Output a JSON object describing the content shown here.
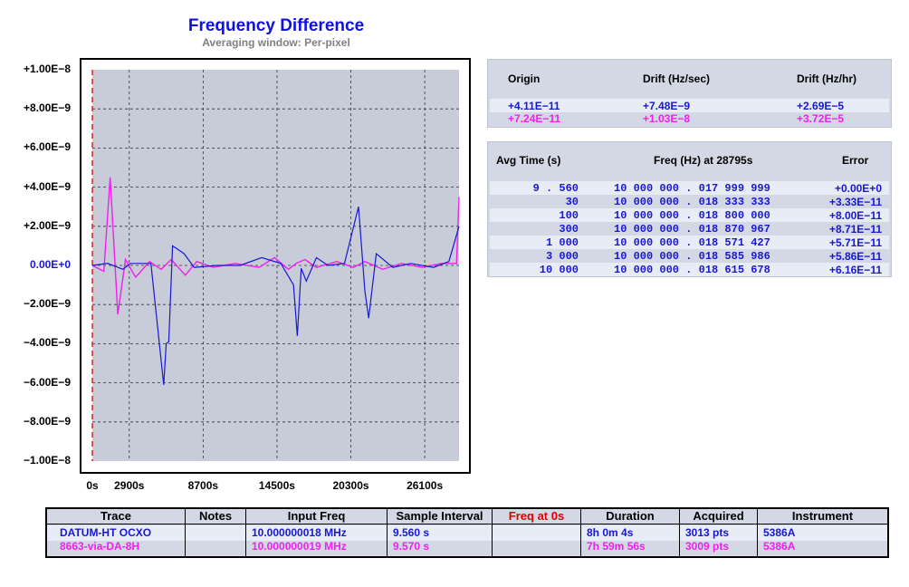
{
  "title": "Frequency Difference",
  "subtitle": "Averaging window: Per-pixel",
  "colors": {
    "trace1": "#1818d0",
    "trace2": "#f020f0",
    "freq_at_0s": "#e00000",
    "plot_bg": "#c8ccd8"
  },
  "chart_data": {
    "type": "line",
    "title": "Frequency Difference",
    "subtitle": "Averaging window: Per-pixel",
    "xlabel": "",
    "ylabel": "",
    "xlim": [
      0,
      28795
    ],
    "ylim": [
      -1e-08,
      1e-08
    ],
    "y_ticks": [
      "+1.00E−8",
      "+8.00E−9",
      "+6.00E−9",
      "+4.00E−9",
      "+2.00E−9",
      "0.00E+0",
      "−2.00E−9",
      "−4.00E−9",
      "−6.00E−9",
      "−8.00E−9",
      "−1.00E−8"
    ],
    "x_ticks": [
      "0s",
      "2900s",
      "8700s",
      "14500s",
      "20300s",
      "26100s"
    ],
    "x_tick_values": [
      0,
      2900,
      8700,
      14500,
      20300,
      26100
    ],
    "grid": true,
    "series": [
      {
        "name": "DATUM-HT OCXO",
        "color": "#1818d0",
        "x": [
          0,
          1200,
          2400,
          3000,
          4600,
          5600,
          5800,
          6000,
          6300,
          7200,
          8000,
          9800,
          11600,
          13300,
          14800,
          15800,
          16100,
          16400,
          16800,
          17600,
          18500,
          19800,
          20900,
          21400,
          21700,
          22300,
          23600,
          25000,
          26800,
          28000,
          28795
        ],
        "y": [
          0,
          1e-10,
          -2e-10,
          1e-10,
          1e-10,
          -6.1e-09,
          -4e-09,
          -3.9e-09,
          1e-09,
          6e-10,
          -1e-10,
          0,
          0,
          4e-10,
          1e-10,
          -1e-09,
          -3.6e-09,
          -1.5e-10,
          -8e-10,
          4e-10,
          0,
          1e-10,
          3e-09,
          -1.3e-09,
          -2.7e-09,
          6e-10,
          -1e-10,
          1e-10,
          -1e-10,
          2e-10,
          2e-09
        ]
      },
      {
        "name": "8663-via-DA-8H",
        "color": "#f020f0",
        "x": [
          0,
          900,
          1400,
          2000,
          2600,
          3400,
          4500,
          5400,
          6200,
          7300,
          8200,
          9500,
          11200,
          13100,
          14300,
          15400,
          16000,
          16700,
          17600,
          19200,
          20500,
          21400,
          22800,
          24300,
          25900,
          27400,
          28600,
          28795
        ],
        "y": [
          0,
          -3e-10,
          4.5e-09,
          -2.5e-09,
          3e-10,
          -6e-10,
          2e-10,
          -2e-10,
          3e-10,
          -5e-10,
          2e-10,
          -1e-10,
          1e-10,
          -1e-10,
          4e-10,
          -2e-10,
          1e-10,
          3e-10,
          -1e-10,
          2e-10,
          -1e-10,
          2e-10,
          -2e-10,
          1e-10,
          -1e-10,
          1e-10,
          1e-10,
          3.5e-09
        ]
      }
    ]
  },
  "drift_panel": {
    "headers": [
      "Origin",
      "Drift (Hz/sec)",
      "Drift (Hz/hr)"
    ],
    "rows": [
      {
        "origin": "+4.11E−11",
        "drift_sec": "+7.48E−9",
        "drift_hr": "+2.69E−5"
      },
      {
        "origin": "+7.24E−11",
        "drift_sec": "+1.03E−8",
        "drift_hr": "+3.72E−5"
      }
    ]
  },
  "avg_panel": {
    "headers": [
      "Avg Time (s)",
      "Freq (Hz) at 28795s",
      "Error"
    ],
    "rows": [
      {
        "avg": "9 . 560",
        "freq": "10 000 000 . 017 999 999",
        "err": "+0.00E+0"
      },
      {
        "avg": "30",
        "freq": "10 000 000 . 018 333 333",
        "err": "+3.33E−11"
      },
      {
        "avg": "100",
        "freq": "10 000 000 . 018 800 000",
        "err": "+8.00E−11"
      },
      {
        "avg": "300",
        "freq": "10 000 000 . 018 870 967",
        "err": "+8.71E−11"
      },
      {
        "avg": "1 000",
        "freq": "10 000 000 . 018 571 427",
        "err": "+5.71E−11"
      },
      {
        "avg": "3 000",
        "freq": "10 000 000 . 018 585 986",
        "err": "+5.86E−11"
      },
      {
        "avg": "10 000",
        "freq": "10 000 000 . 018 615 678",
        "err": "+6.16E−11"
      }
    ]
  },
  "traces_table": {
    "headers": [
      "Trace",
      "Notes",
      "Input Freq",
      "Sample Interval",
      "Freq at 0s",
      "Duration",
      "Acquired",
      "Instrument"
    ],
    "rows": [
      {
        "trace": "DATUM-HT OCXO",
        "notes": "",
        "input_freq": "10.000000018 MHz",
        "sample_interval": "9.560 s",
        "freq_at_0s": "",
        "duration": "8h 0m 4s",
        "acquired": "3013 pts",
        "instrument": "5386A"
      },
      {
        "trace": "8663-via-DA-8H",
        "notes": "",
        "input_freq": "10.000000019 MHz",
        "sample_interval": "9.570 s",
        "freq_at_0s": "",
        "duration": "7h 59m 56s",
        "acquired": "3009 pts",
        "instrument": "5386A"
      }
    ]
  }
}
